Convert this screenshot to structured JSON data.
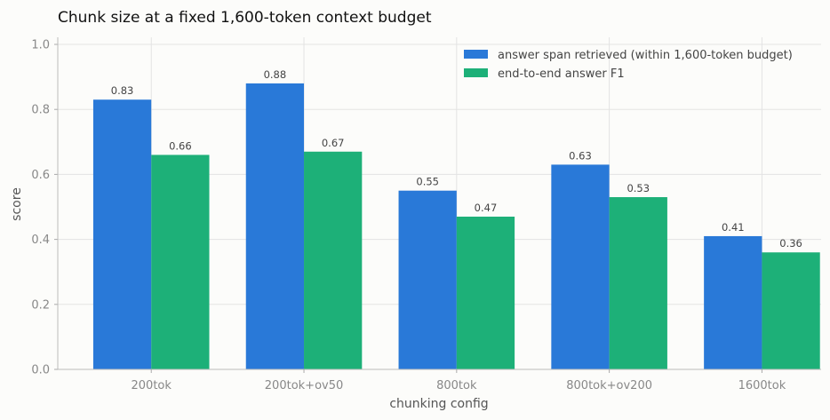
{
  "chart_data": {
    "type": "bar",
    "title": "Chunk size at a fixed 1,600-token context budget",
    "xlabel": "chunking config",
    "ylabel": "score",
    "categories": [
      "200tok",
      "200tok+ov50",
      "800tok",
      "800tok+ov200",
      "1600tok"
    ],
    "series": [
      {
        "name": "answer span retrieved (within 1,600-token budget)",
        "values": [
          0.83,
          0.88,
          0.55,
          0.63,
          0.41
        ],
        "color": "#2979d8"
      },
      {
        "name": "end-to-end answer F1",
        "values": [
          0.66,
          0.67,
          0.47,
          0.53,
          0.36
        ],
        "color": "#1db078"
      }
    ],
    "ylim": [
      0,
      1.0
    ],
    "yticks": [
      0.0,
      0.2,
      0.4,
      0.6,
      0.8,
      1.0
    ],
    "ytick_labels": [
      "0.0",
      "0.2",
      "0.4",
      "0.6",
      "0.8",
      "1.0"
    ],
    "bar_labels": [
      [
        "0.83",
        "0.88",
        "0.55",
        "0.63",
        "0.41"
      ],
      [
        "0.66",
        "0.67",
        "0.47",
        "0.53",
        "0.36"
      ]
    ],
    "grid": true,
    "legend_position": "top-right"
  }
}
